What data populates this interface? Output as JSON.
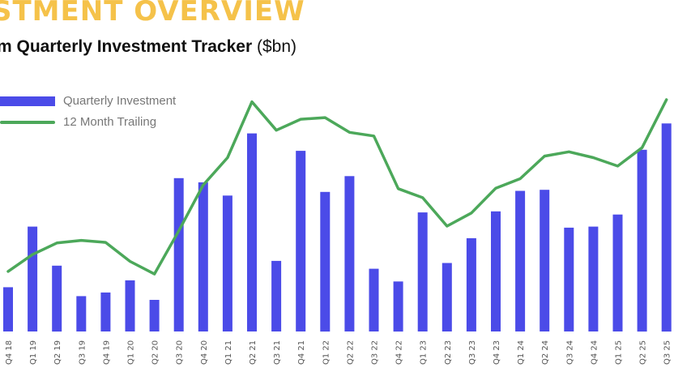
{
  "page": {
    "title": "STMENT OVERVIEW",
    "subtitle_bold": "m Quarterly Investment Tracker",
    "subtitle_unit": " ($bn)"
  },
  "colors": {
    "title": "#F5C24A",
    "bar": "#4B4BE8",
    "line": "#4CA85A",
    "axis_text": "#555555"
  },
  "chart_data": {
    "type": "bar",
    "title": "Quarterly Investment Tracker ($bn)",
    "xlabel": "",
    "ylabel": "",
    "ylim": [
      0,
      42
    ],
    "grid": false,
    "legend_position": "top-left",
    "categories": [
      "Q4 18",
      "Q1 19",
      "Q2 19",
      "Q3 19",
      "Q4 19",
      "Q1 20",
      "Q2 20",
      "Q3 20",
      "Q4 20",
      "Q1 21",
      "Q2 21",
      "Q3 21",
      "Q4 21",
      "Q1 22",
      "Q2 22",
      "Q3 22",
      "Q4 22",
      "Q1 23",
      "Q2 23",
      "Q3 23",
      "Q4 23",
      "Q1 24",
      "Q2 24",
      "Q3 24",
      "Q4 24",
      "Q1 25",
      "Q2 25",
      "Q3 25"
    ],
    "series": [
      {
        "name": "Quarterly Investment",
        "type": "bar",
        "values": [
          8.4,
          19.9,
          12.5,
          6.7,
          7.4,
          9.7,
          6.0,
          29.1,
          28.3,
          25.8,
          37.6,
          13.4,
          34.3,
          26.5,
          29.5,
          11.9,
          9.5,
          22.6,
          13.0,
          17.7,
          22.8,
          26.7,
          26.9,
          19.7,
          19.9,
          22.2,
          34.5,
          39.5
        ]
      },
      {
        "name": "12 Month Trailing",
        "type": "line",
        "values": [
          11.4,
          14.6,
          16.8,
          17.3,
          16.9,
          13.3,
          10.9,
          19.1,
          27.8,
          33.0,
          43.6,
          38.2,
          40.3,
          40.6,
          37.8,
          37.1,
          27.1,
          25.4,
          20.0,
          22.5,
          27.2,
          29.0,
          33.3,
          34.1,
          33.0,
          31.4,
          34.9,
          44.0
        ]
      }
    ]
  }
}
